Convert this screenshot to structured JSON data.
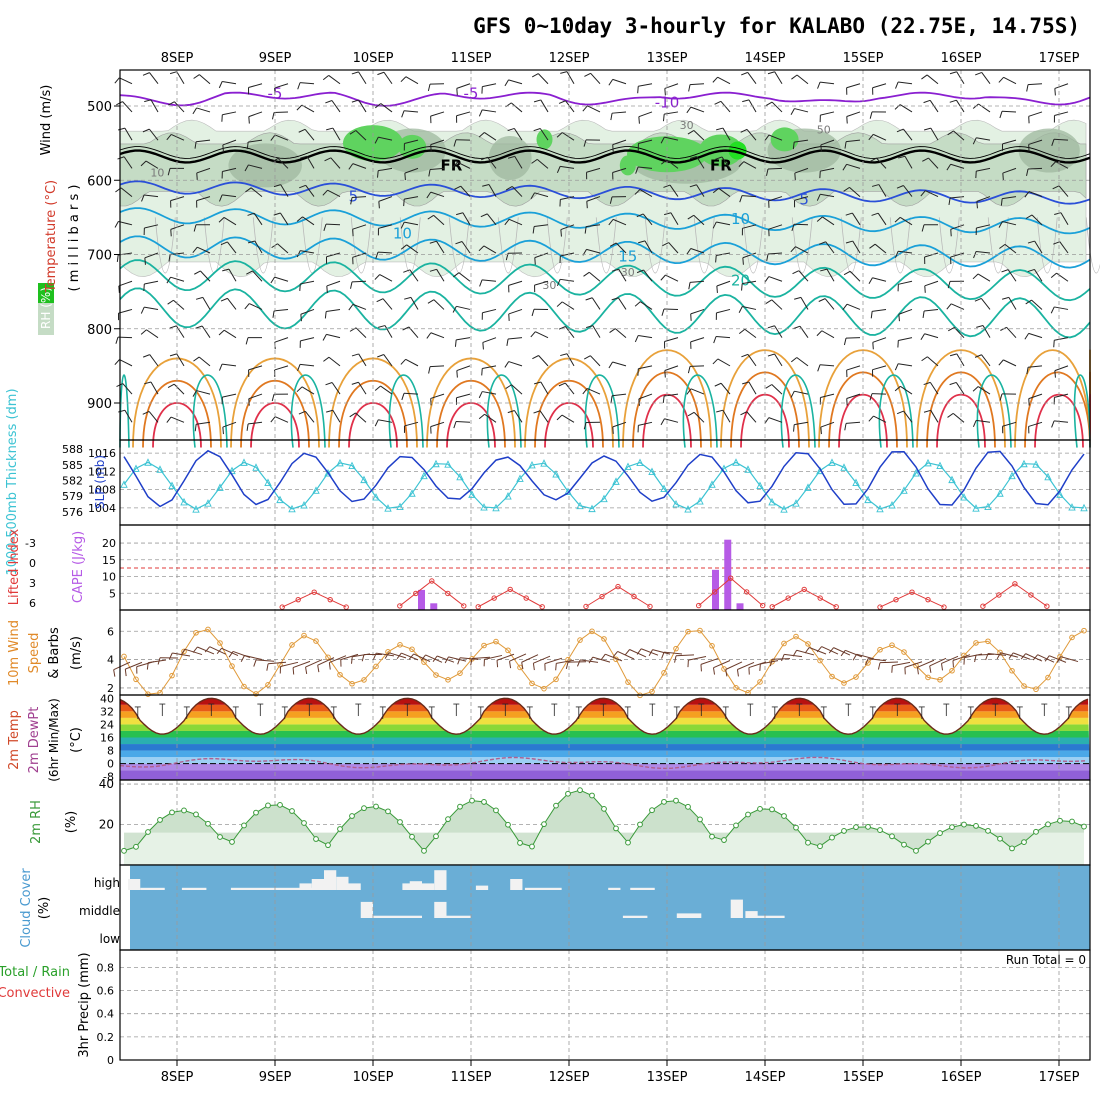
{
  "page": {
    "title": "GFS 0~10day 3-hourly for KALABO (22.75E, 14.75S)"
  },
  "colors": {
    "frame": "#000000",
    "grid": "#9a9a9a",
    "rh_light": "#e3f1e3",
    "rh_mid": "#c5dcc5",
    "rh_dark": "#9fb89f",
    "rh_green": "#5fd35f",
    "t_purple": "#8a1fd0",
    "t_blue": "#2a4fd8",
    "t_lightblue": "#1aa0d8",
    "t_teal": "#1ab3a0",
    "t_orange": "#e8a13a",
    "t_darkorange": "#e07820",
    "t_red": "#e0304a",
    "slp": "#1f3fc8",
    "thick": "#3cc3d3",
    "cape": "#b65be6",
    "li": "#e03a3a",
    "wind": "#e09a3a",
    "rh2m": "#3a9a3a",
    "rh2m_fill": "#e6f2e6",
    "cloud_bg": "#6aaed6",
    "cloud_bar": "#f2f2f2",
    "dewpt": "#b06090"
  },
  "chart_data": [
    {
      "panel": "upper-air",
      "type": "heatmap",
      "xlabels_top": [
        "8SEP",
        "9SEP",
        "10SEP",
        "11SEP",
        "12SEP",
        "13SEP",
        "14SEP",
        "15SEP",
        "16SEP",
        "17SEP"
      ],
      "ylabel_parts": [
        "RH (%)",
        "Temperature (°C)",
        "Wind (m/s)"
      ],
      "ylabel_sub": "( m i l l i b a r s )",
      "yticks": [
        500,
        600,
        700,
        800,
        900
      ],
      "ylim": [
        950,
        450
      ],
      "contour_labels": [
        {
          "text": "-5",
          "day": 1.0,
          "p": 483,
          "series": "purple"
        },
        {
          "text": "-5",
          "day": 3.0,
          "p": 483,
          "series": "purple"
        },
        {
          "text": "-10",
          "day": 5.0,
          "p": 495,
          "series": "purple"
        },
        {
          "text": "FR",
          "day": 2.8,
          "p": 580,
          "series": "black"
        },
        {
          "text": "FR",
          "day": 5.55,
          "p": 580,
          "series": "black"
        },
        {
          "text": "5",
          "day": 1.8,
          "p": 622,
          "series": "blue"
        },
        {
          "text": "5",
          "day": 6.4,
          "p": 626,
          "series": "blue"
        },
        {
          "text": "10",
          "day": 2.3,
          "p": 672,
          "series": "lightblue"
        },
        {
          "text": "10",
          "day": 5.75,
          "p": 652,
          "series": "lightblue"
        },
        {
          "text": "15",
          "day": 4.6,
          "p": 703,
          "series": "lightblue"
        },
        {
          "text": "20",
          "day": 5.75,
          "p": 735,
          "series": "teal"
        },
        {
          "text": "10",
          "day": -0.2,
          "p": 588,
          "series": "gray"
        },
        {
          "text": "30",
          "day": 4.6,
          "p": 722,
          "series": "gray"
        },
        {
          "text": "30",
          "day": 3.8,
          "p": 740,
          "series": "gray"
        },
        {
          "text": "30",
          "day": 5.2,
          "p": 524,
          "series": "gray"
        },
        {
          "text": "50",
          "day": 6.6,
          "p": 530,
          "series": "gray"
        }
      ],
      "temp_lines": [
        {
          "name": "-5",
          "color": "purple",
          "base": 486,
          "amp": 4
        },
        {
          "name": "FR",
          "color": "black",
          "base": 568,
          "amp": 8
        },
        {
          "name": "5",
          "color": "blue",
          "base": 610,
          "amp": 8
        },
        {
          "name": "10",
          "color": "lightblue",
          "base": 648,
          "amp": 10
        },
        {
          "name": "15",
          "color": "lightblue",
          "base": 690,
          "amp": 14
        },
        {
          "name": "20",
          "color": "teal",
          "base": 728,
          "amp": 20
        },
        {
          "name": "25",
          "color": "teal",
          "base": 772,
          "amp": 26
        }
      ]
    },
    {
      "panel": "slp-thickness",
      "type": "line",
      "ylabel_left": "1000-500mb Thickness (dm)",
      "ylabel_right": "SLP (mb)",
      "yticks_left": [
        588,
        585,
        582,
        579,
        576
      ],
      "yticks_right": [
        1016,
        1012,
        1008,
        1004
      ],
      "ylim_slp": [
        1002,
        1018
      ],
      "days": [
        0,
        1,
        2,
        3,
        4,
        5,
        6,
        7,
        8,
        9
      ],
      "slp_series": {
        "name": "SLP (mb)",
        "min": 1004,
        "max": 1017
      },
      "thick_series": {
        "name": "1000-500mb Thickness (dm)",
        "min": 576,
        "max": 586
      }
    },
    {
      "panel": "cape-li",
      "type": "bar",
      "ylabel_left": "Lifted Index",
      "ylabel_right": "CAPE (J/kg)",
      "yticks_left": [
        "-3",
        "0",
        "3",
        "6"
      ],
      "yticks_right": [
        20,
        15,
        10,
        5
      ],
      "cape_bars": [
        {
          "day": 2.5,
          "value": 6
        },
        {
          "day": 2.625,
          "value": 2
        },
        {
          "day": 5.5,
          "value": 12
        },
        {
          "day": 5.625,
          "value": 21
        },
        {
          "day": 5.75,
          "value": 2
        }
      ]
    },
    {
      "panel": "wind10m",
      "type": "line",
      "ylabel": "10m Wind Speed & Barbs (m/s)",
      "yticks": [
        2,
        4,
        6
      ],
      "ylim": [
        1.5,
        7.5
      ]
    },
    {
      "panel": "temp2m",
      "type": "area",
      "ylabel": "2m Temp 2m DewPt (6hr Min/Max) (°C)",
      "yticks": [
        40,
        32,
        24,
        16,
        8,
        0,
        -8
      ],
      "ylim": [
        -10,
        42
      ],
      "tmax": 40,
      "tmin": 18,
      "dewpt_range": [
        -3,
        3
      ]
    },
    {
      "panel": "rh2m",
      "type": "area",
      "ylabel": "2m RH (%)",
      "yticks": [
        40,
        20
      ],
      "ylim": [
        0,
        42
      ],
      "peaks": [
        {
          "day": 0.05,
          "value": 27
        },
        {
          "day": 1.0,
          "value": 30
        },
        {
          "day": 2.0,
          "value": 29
        },
        {
          "day": 3.05,
          "value": 32
        },
        {
          "day": 4.1,
          "value": 37
        },
        {
          "day": 5.05,
          "value": 32
        },
        {
          "day": 6.0,
          "value": 28
        },
        {
          "day": 7.0,
          "value": 19
        },
        {
          "day": 8.05,
          "value": 20
        },
        {
          "day": 9.05,
          "value": 22
        }
      ],
      "troughs_value": 7
    },
    {
      "panel": "cloud",
      "type": "bar",
      "ylabel": "Cloud Cover (%)",
      "levels": [
        "high",
        "middle",
        "low"
      ],
      "high": [
        {
          "day": -0.5,
          "width": 0.125,
          "value": 50
        },
        {
          "day": -0.375,
          "width": 0.25,
          "value": 10
        },
        {
          "day": 0.05,
          "width": 0.25,
          "value": 10
        },
        {
          "day": 0.55,
          "width": 1.0,
          "value": 10
        },
        {
          "day": 1.25,
          "width": 0.125,
          "value": 30
        },
        {
          "day": 1.375,
          "width": 0.125,
          "value": 50
        },
        {
          "day": 1.5,
          "width": 0.125,
          "value": 90
        },
        {
          "day": 1.625,
          "width": 0.125,
          "value": 60
        },
        {
          "day": 1.75,
          "width": 0.125,
          "value": 30
        },
        {
          "day": 2.3,
          "width": 0.125,
          "value": 30
        },
        {
          "day": 2.375,
          "width": 0.125,
          "value": 40
        },
        {
          "day": 2.5,
          "width": 0.125,
          "value": 30
        },
        {
          "day": 2.625,
          "width": 0.125,
          "value": 90
        },
        {
          "day": 3.05,
          "width": 0.125,
          "value": 20
        },
        {
          "day": 3.4,
          "width": 0.125,
          "value": 50
        },
        {
          "day": 3.55,
          "width": 0.375,
          "value": 10
        },
        {
          "day": 4.4,
          "width": 0.125,
          "value": 10
        },
        {
          "day": 4.625,
          "width": 0.25,
          "value": 10
        }
      ],
      "middle": [
        {
          "day": 1.875,
          "width": 0.125,
          "value": 70
        },
        {
          "day": 2.0,
          "width": 0.5,
          "value": 10
        },
        {
          "day": 2.625,
          "width": 0.125,
          "value": 70
        },
        {
          "day": 2.75,
          "width": 0.25,
          "value": 10
        },
        {
          "day": 4.55,
          "width": 0.25,
          "value": 10
        },
        {
          "day": 5.1,
          "width": 0.25,
          "value": 20
        },
        {
          "day": 5.65,
          "width": 0.125,
          "value": 80
        },
        {
          "day": 5.8,
          "width": 0.125,
          "value": 30
        },
        {
          "day": 5.9,
          "width": 0.3,
          "value": 10
        }
      ]
    },
    {
      "panel": "precip",
      "type": "bar",
      "ylabel_parts": [
        "Total / Rain",
        "Convective",
        "3hr Precip (mm)"
      ],
      "yticks": [
        0,
        0.2,
        0.4,
        0.6,
        0.8
      ],
      "ylim": [
        0,
        0.95
      ],
      "values": [],
      "run_total": "Run Total = 0"
    }
  ],
  "xlabels_bottom": [
    "8SEP",
    "9SEP",
    "10SEP",
    "11SEP",
    "12SEP",
    "13SEP",
    "14SEP",
    "15SEP",
    "16SEP",
    "17SEP"
  ]
}
